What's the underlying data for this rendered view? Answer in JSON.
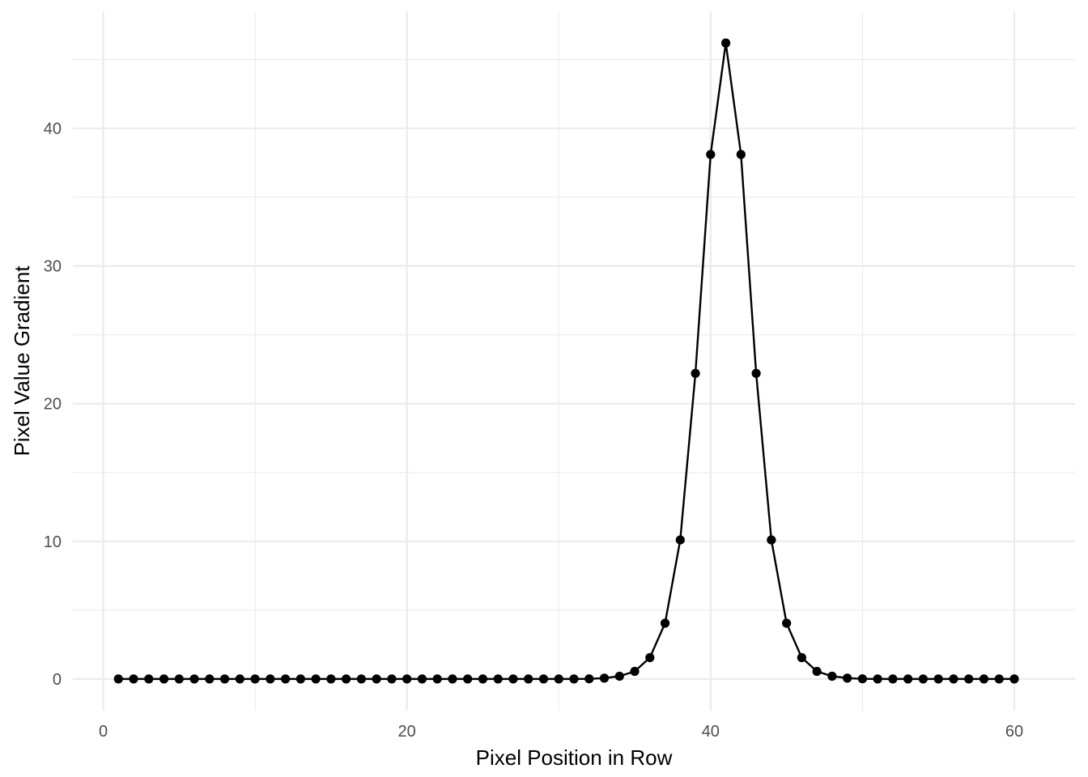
{
  "chart_data": {
    "type": "line",
    "title": "",
    "xlabel": "Pixel Position in Row",
    "ylabel": "Pixel Value Gradient",
    "xlim": [
      -2,
      64
    ],
    "ylim": [
      -2.3,
      48.5
    ],
    "x_ticks": [
      0,
      20,
      40,
      60
    ],
    "y_ticks": [
      0,
      10,
      20,
      30,
      40
    ],
    "x_tick_labels": [
      "0",
      "20",
      "40",
      "60"
    ],
    "y_tick_labels": [
      "0",
      "10",
      "20",
      "30",
      "40"
    ],
    "grid": true,
    "legend": "none",
    "markers": true,
    "line_color": "#000000",
    "x": [
      1,
      2,
      3,
      4,
      5,
      6,
      7,
      8,
      9,
      10,
      11,
      12,
      13,
      14,
      15,
      16,
      17,
      18,
      19,
      20,
      21,
      22,
      23,
      24,
      25,
      26,
      27,
      28,
      29,
      30,
      31,
      32,
      33,
      34,
      35,
      36,
      37,
      38,
      39,
      40,
      41,
      42,
      43,
      44,
      45,
      46,
      47,
      48,
      49,
      50,
      51,
      52,
      53,
      54,
      55,
      56,
      57,
      58,
      59,
      60
    ],
    "y": [
      0,
      0,
      0,
      0,
      0,
      0,
      0,
      0,
      0,
      0,
      0,
      0,
      0,
      0,
      0,
      0,
      0,
      0,
      0,
      0,
      0,
      0,
      0,
      0,
      0,
      0,
      0,
      0,
      0,
      0,
      0,
      0.01,
      0.06,
      0.2,
      0.55,
      1.55,
      4.05,
      10.1,
      22.2,
      38.1,
      46.2,
      38.1,
      22.2,
      10.1,
      4.05,
      1.55,
      0.55,
      0.2,
      0.06,
      0.01,
      0,
      0,
      0,
      0,
      0,
      0,
      0,
      0,
      0,
      0
    ]
  }
}
